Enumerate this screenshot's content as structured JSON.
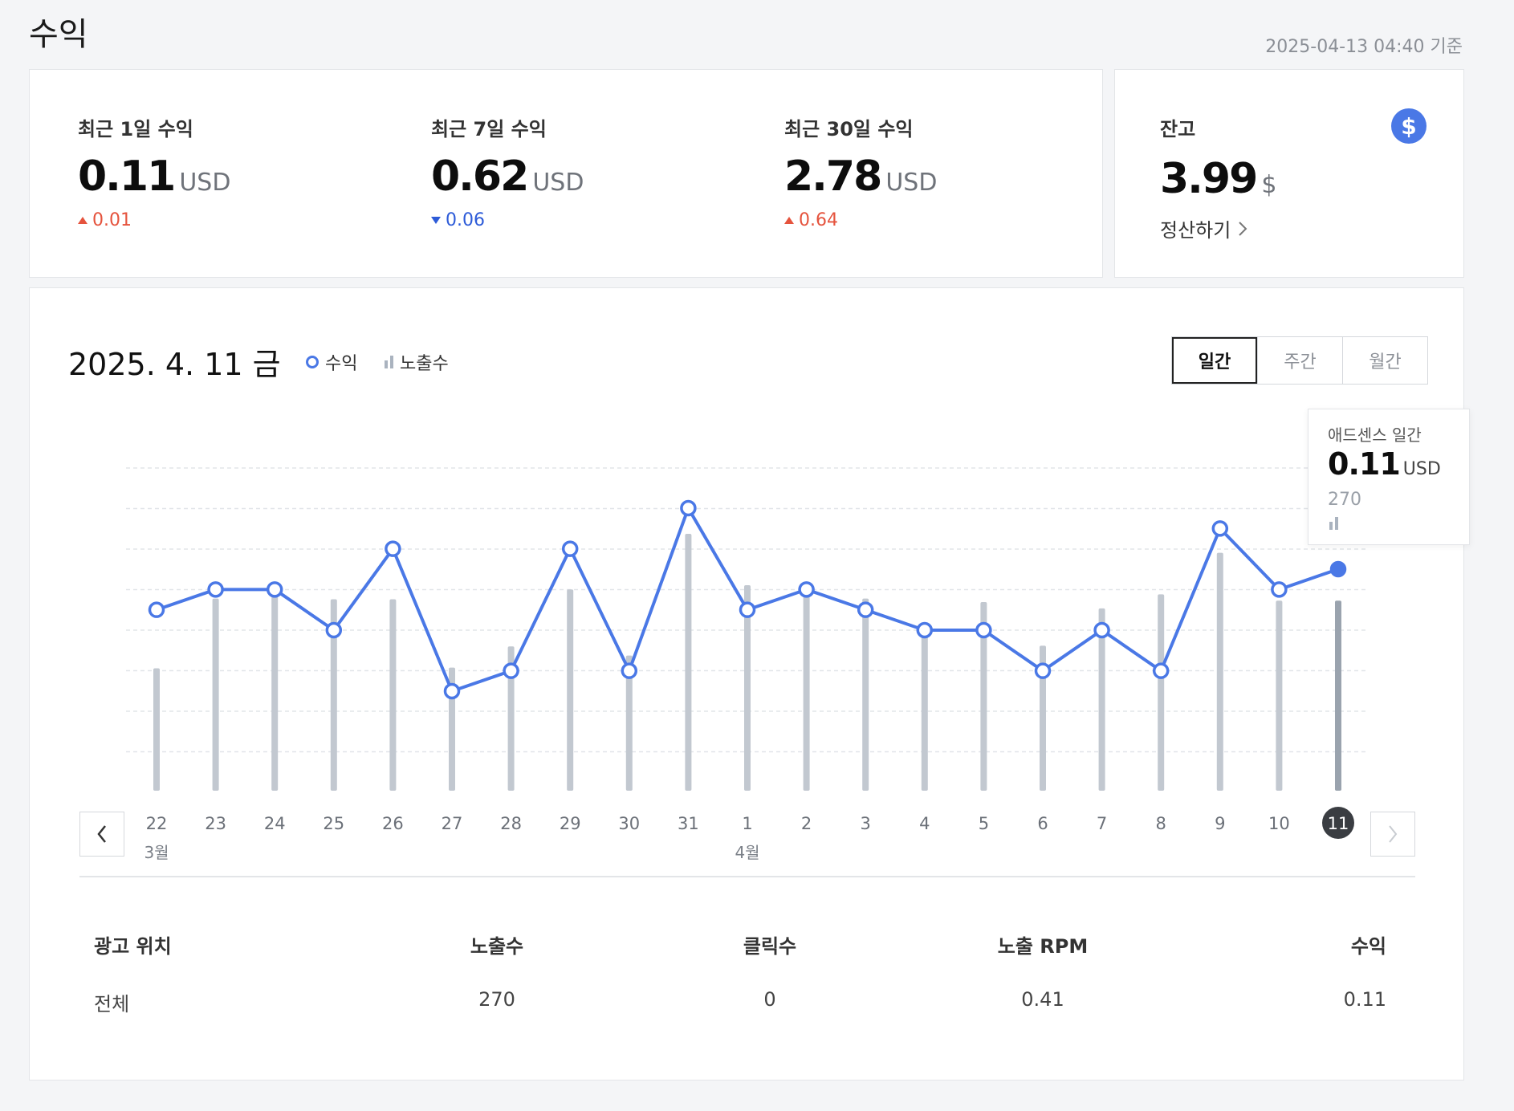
{
  "page": {
    "title": "수익",
    "as_of": "2025-04-13 04:40 기준"
  },
  "summary": [
    {
      "label": "최근 1일 수익",
      "value": "0.11",
      "unit": "USD",
      "delta": "0.01",
      "direction": "up"
    },
    {
      "label": "최근 7일 수익",
      "value": "0.62",
      "unit": "USD",
      "delta": "0.06",
      "direction": "down"
    },
    {
      "label": "최근 30일 수익",
      "value": "2.78",
      "unit": "USD",
      "delta": "0.64",
      "direction": "up"
    }
  ],
  "balance": {
    "label": "잔고",
    "value": "3.99",
    "unit": "$",
    "icon": "dollar-icon",
    "settle_label": "정산하기"
  },
  "chart_panel": {
    "date_title": "2025. 4. 11 금",
    "legend": {
      "revenue": "수익",
      "impressions": "노출수"
    },
    "periods": [
      "일간",
      "주간",
      "월간"
    ],
    "active_period": "일간",
    "tooltip": {
      "label": "애드센스 일간",
      "value": "0.11",
      "unit": "USD",
      "impressions": "270"
    }
  },
  "chart_data": {
    "type": "line",
    "categories": [
      "22",
      "23",
      "24",
      "25",
      "26",
      "27",
      "28",
      "29",
      "30",
      "31",
      "1",
      "2",
      "3",
      "4",
      "5",
      "6",
      "7",
      "8",
      "9",
      "10",
      "11"
    ],
    "month_labels": [
      {
        "index": 0,
        "label": "3월"
      },
      {
        "index": 10,
        "label": "4월"
      }
    ],
    "series": [
      {
        "name": "수익",
        "type": "line",
        "color": "#4a78e6",
        "values": [
          0.09,
          0.1,
          0.1,
          0.08,
          0.12,
          0.05,
          0.06,
          0.12,
          0.06,
          0.14,
          0.09,
          0.1,
          0.09,
          0.08,
          0.08,
          0.06,
          0.08,
          0.06,
          0.13,
          0.1,
          0.11
        ]
      },
      {
        "name": "노출수",
        "type": "bar",
        "color": "#c2c8d0",
        "values": [
          174,
          273,
          276,
          272,
          272,
          175,
          205,
          286,
          192,
          365,
          292,
          283,
          273,
          224,
          268,
          206,
          259,
          279,
          338,
          270,
          270
        ]
      }
    ],
    "highlight_index": 20,
    "grid": true
  },
  "table": {
    "headers": [
      "광고 위치",
      "노출수",
      "클릭수",
      "노출 RPM",
      "수익"
    ],
    "rows": [
      [
        "전체",
        "270",
        "0",
        "0.41",
        "0.11"
      ]
    ]
  },
  "colors": {
    "accent": "#4a78e6",
    "up": "#e5533d",
    "down": "#2d5bd8"
  }
}
